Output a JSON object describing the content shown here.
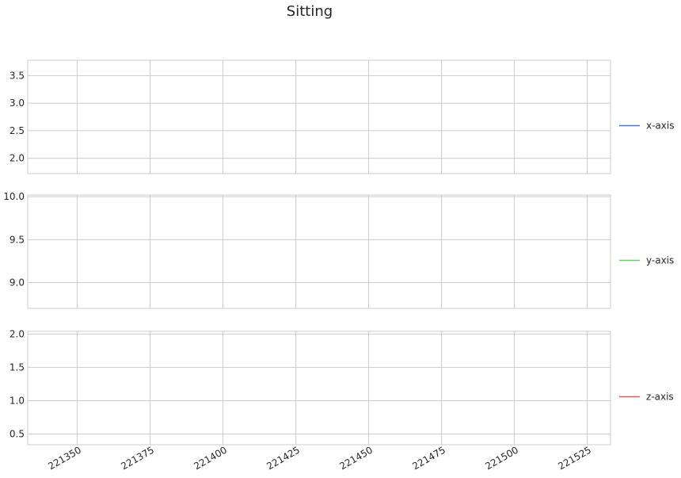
{
  "title": "Sitting",
  "colors": {
    "x": "#4878cf",
    "y": "#6acc65",
    "z": "#d65f5f",
    "grid": "#cccccc",
    "frame": "#cccccc"
  },
  "chart_data": [
    {
      "type": "line",
      "series": [
        {
          "name": "x-axis",
          "color": "#4878cf"
        }
      ],
      "ylim": [
        1.72,
        3.78
      ],
      "yticks": [
        2.0,
        2.5,
        3.0,
        3.5
      ],
      "ytick_labels": [
        "2.0",
        "2.5",
        "3.0",
        "3.5"
      ],
      "legend": "right",
      "grid": true
    },
    {
      "type": "line",
      "series": [
        {
          "name": "y-axis",
          "color": "#6acc65"
        }
      ],
      "ylim": [
        8.7,
        10.02
      ],
      "yticks": [
        9.0,
        9.5,
        10.0
      ],
      "ytick_labels": [
        "9.0",
        "9.5",
        "10.0"
      ],
      "legend": "right",
      "grid": true
    },
    {
      "type": "line",
      "series": [
        {
          "name": "z-axis",
          "color": "#d65f5f"
        }
      ],
      "ylim": [
        0.34,
        2.04
      ],
      "yticks": [
        0.5,
        1.0,
        1.5,
        2.0
      ],
      "ytick_labels": [
        "0.5",
        "1.0",
        "1.5",
        "2.0"
      ],
      "legend": "right",
      "grid": true
    }
  ],
  "x_axis": {
    "xlim": [
      221333,
      221533
    ],
    "xticks": [
      221350,
      221375,
      221400,
      221425,
      221450,
      221475,
      221500,
      221525
    ],
    "xtick_labels": [
      "221350",
      "221375",
      "221400",
      "221425",
      "221450",
      "221475",
      "221500",
      "221525"
    ]
  }
}
